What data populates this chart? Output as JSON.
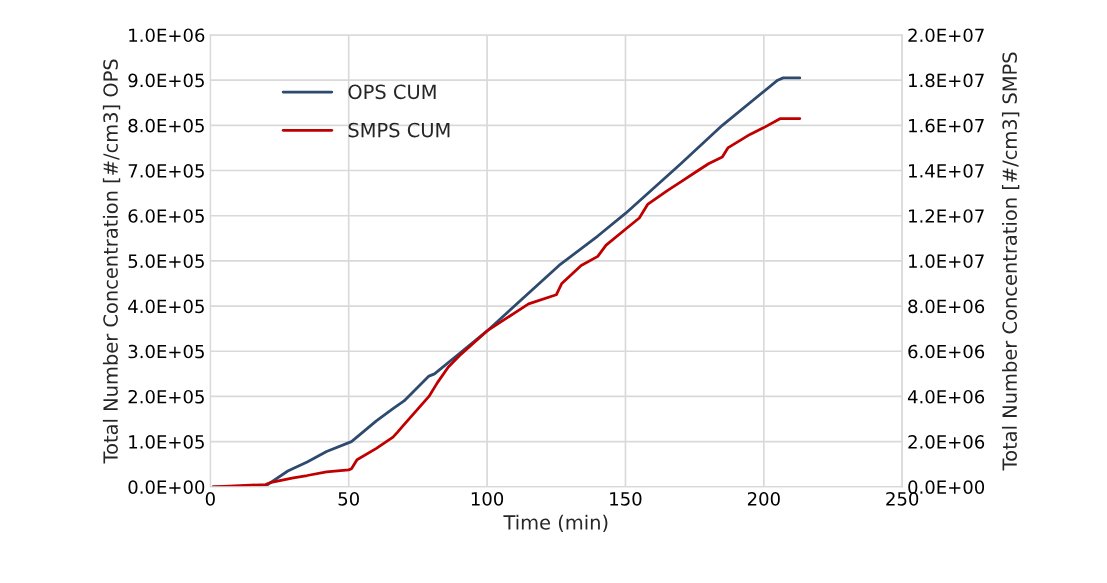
{
  "chart_data": {
    "type": "line",
    "xlabel": "Time (min)",
    "ylabel": "Total Number Concentration [#/cm3] OPS",
    "y2label": "Total Number Concentration [#/cm3] SMPS",
    "xlim": [
      0,
      250
    ],
    "xticks": [
      0,
      50,
      100,
      150,
      200,
      250
    ],
    "ylim": [
      0,
      1000000
    ],
    "yticks": [
      {
        "value": 0,
        "label": "0.0E+00"
      },
      {
        "value": 100000,
        "label": "1.0E+05"
      },
      {
        "value": 200000,
        "label": "2.0E+05"
      },
      {
        "value": 300000,
        "label": "3.0E+05"
      },
      {
        "value": 400000,
        "label": "4.0E+05"
      },
      {
        "value": 500000,
        "label": "5.0E+05"
      },
      {
        "value": 600000,
        "label": "6.0E+05"
      },
      {
        "value": 700000,
        "label": "7.0E+05"
      },
      {
        "value": 800000,
        "label": "8.0E+05"
      },
      {
        "value": 900000,
        "label": "9.0E+05"
      },
      {
        "value": 1000000,
        "label": "1.0E+06"
      }
    ],
    "y2lim": [
      0,
      20000000
    ],
    "y2ticks": [
      {
        "value": 0,
        "label": "0.0E+00"
      },
      {
        "value": 2000000,
        "label": "2.0E+06"
      },
      {
        "value": 4000000,
        "label": "4.0E+06"
      },
      {
        "value": 6000000,
        "label": "6.0E+06"
      },
      {
        "value": 8000000,
        "label": "8.0E+06"
      },
      {
        "value": 10000000,
        "label": "1.0E+07"
      },
      {
        "value": 12000000,
        "label": "1.2E+07"
      },
      {
        "value": 14000000,
        "label": "1.4E+07"
      },
      {
        "value": 16000000,
        "label": "1.6E+07"
      },
      {
        "value": 18000000,
        "label": "1.8E+07"
      },
      {
        "value": 20000000,
        "label": "2.0E+07"
      }
    ],
    "grid": true,
    "legend": "top left",
    "series": [
      {
        "name": "OPS CUM",
        "color": "#2e4a6e",
        "x": [
          1,
          20,
          28,
          35,
          42,
          51,
          60,
          66,
          70,
          79,
          81,
          90,
          100,
          126,
          140,
          150,
          170,
          185,
          205,
          207,
          213
        ],
        "values": [
          0,
          2000,
          35000,
          55000,
          78000,
          100000,
          146000,
          173000,
          190000,
          245000,
          250000,
          295000,
          345000,
          490000,
          555000,
          605000,
          715000,
          800000,
          900000,
          905000,
          905000
        ]
      },
      {
        "name": "SMPS CUM",
        "color": "#c00000",
        "axis": "y2",
        "x": [
          1,
          20,
          22,
          30,
          35,
          42,
          50,
          51,
          53,
          60,
          66,
          67.5,
          70,
          79,
          82,
          86,
          90,
          100,
          110,
          115,
          125,
          127,
          134,
          140,
          143,
          150,
          155,
          158,
          165,
          170,
          175,
          180,
          185,
          187,
          195,
          200,
          206,
          213
        ],
        "values": [
          0,
          100000,
          200000,
          400000,
          500000,
          660000,
          750000,
          800000,
          1200000,
          1700000,
          2200000,
          2400000,
          2750000,
          4000000,
          4600000,
          5300000,
          5800000,
          6900000,
          7700000,
          8100000,
          8500000,
          9000000,
          9800000,
          10200000,
          10700000,
          11400000,
          11900000,
          12500000,
          13100000,
          13500000,
          13900000,
          14300000,
          14600000,
          15000000,
          15600000,
          15900000,
          16300000,
          16300000
        ]
      }
    ]
  }
}
